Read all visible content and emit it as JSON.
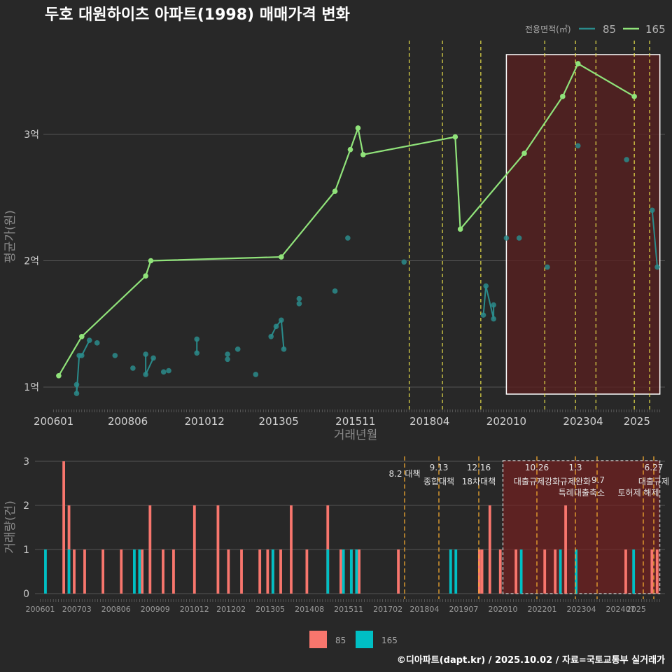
{
  "title": "두호 대원하이츠 아파트(1998) 매매가격 변화",
  "footer": "©디아파트(dapt.kr) / 2025.10.02 / 자료=국토교통부 실거래가",
  "colors": {
    "background": "#282828",
    "s85_price": "#2a8b8b",
    "s165_price": "#90e37a",
    "s85_bar": "#f8766d",
    "s165_bar": "#00bfc4",
    "policy_line_top": "#e8e04a",
    "policy_line_bottom": "#f0a830",
    "highlight": "#5a1f1f"
  },
  "chart_data": [
    {
      "type": "line",
      "title": "두호 대원하이츠 아파트(1998) 매매가격 변화",
      "xlabel": "거래년월",
      "ylabel": "평균가(원)",
      "x_ticks": [
        "200601",
        "200806",
        "201012",
        "201305",
        "201511",
        "201804",
        "202010",
        "202304",
        "2025"
      ],
      "y_ticks": [
        "1억",
        "2억",
        "3억"
      ],
      "ylim_eok": [
        0.92,
        3.65
      ],
      "legend": {
        "title": "전용면적(㎡)",
        "entries": [
          "85",
          "165"
        ],
        "position": "top-right"
      },
      "highlight_range": [
        "202010",
        "202510"
      ],
      "policy_dates": [
        "2017-08",
        "2018-09",
        "2019-12",
        "2022-01",
        "2023-01",
        "2023-09",
        "2024-12",
        "2025-06"
      ],
      "series": [
        {
          "name": "165",
          "points": [
            [
              "2006-03",
              1.09
            ],
            [
              "2006-12",
              1.4
            ],
            [
              "2009-01",
              1.88
            ],
            [
              "2009-03",
              2.0
            ],
            [
              "2013-06",
              2.03
            ],
            [
              "2015-03",
              2.55
            ],
            [
              "2015-09",
              2.88
            ],
            [
              "2015-12",
              3.05
            ],
            [
              "2016-02",
              2.84
            ],
            [
              "2019-02",
              2.98
            ],
            [
              "2019-04",
              2.25
            ],
            [
              "2021-05",
              2.85
            ],
            [
              "2022-08",
              3.3
            ],
            [
              "2023-02",
              3.56
            ],
            [
              "2024-12",
              3.3
            ]
          ]
        },
        {
          "name": "85",
          "points": [
            [
              "2006-10",
              1.02
            ],
            [
              "2006-10",
              0.95
            ],
            [
              "2006-11",
              1.25
            ],
            [
              "2006-12",
              1.25
            ],
            [
              "2007-03",
              1.37
            ],
            [
              "2007-06",
              1.35
            ],
            [
              "2008-01",
              1.25
            ],
            [
              "2008-08",
              1.15
            ],
            [
              "2009-01",
              1.26
            ],
            [
              "2009-01",
              1.1
            ],
            [
              "2009-04",
              1.23
            ],
            [
              "2009-08",
              1.12
            ],
            [
              "2009-10",
              1.13
            ],
            [
              "2010-09",
              1.27
            ],
            [
              "2010-09",
              1.38
            ],
            [
              "2011-09",
              1.26
            ],
            [
              "2011-09",
              1.22
            ],
            [
              "2012-01",
              1.3
            ],
            [
              "2012-08",
              1.1
            ],
            [
              "2013-02",
              1.4
            ],
            [
              "2013-04",
              1.48
            ],
            [
              "2013-06",
              1.53
            ],
            [
              "2013-07",
              1.3
            ],
            [
              "2014-01",
              1.66
            ],
            [
              "2014-01",
              1.7
            ],
            [
              "2015-03",
              1.76
            ],
            [
              "2015-08",
              2.18
            ],
            [
              "2017-06",
              1.99
            ],
            [
              "2020-01",
              1.57
            ],
            [
              "2020-02",
              1.8
            ],
            [
              "2020-05",
              1.54
            ],
            [
              "2020-05",
              1.65
            ],
            [
              "2020-10",
              2.18
            ],
            [
              "2021-03",
              2.18
            ],
            [
              "2022-02",
              1.95
            ],
            [
              "2023-02",
              2.91
            ],
            [
              "2024-09",
              2.8
            ],
            [
              "2025-07",
              2.4
            ],
            [
              "2025-09",
              1.95
            ]
          ]
        }
      ]
    },
    {
      "type": "bar",
      "ylabel": "거래량(건)",
      "x_ticks": [
        "200601",
        "200703",
        "200806",
        "200909",
        "201012",
        "201202",
        "201305",
        "201408",
        "201511",
        "201702",
        "201804",
        "201907",
        "202010",
        "202201",
        "202304",
        "202407",
        "2025"
      ],
      "y_ticks": [
        "0",
        "1",
        "2",
        "3"
      ],
      "ylim": [
        0,
        3
      ],
      "legend": {
        "entries": [
          "85",
          "165"
        ],
        "position": "bottom"
      },
      "highlight_range": [
        "202010",
        "202510"
      ],
      "policy_labels": [
        {
          "date": "2017-08",
          "lines": [
            "8.2 대책"
          ]
        },
        {
          "date": "2018-09",
          "lines": [
            "9.13",
            "종합대책"
          ]
        },
        {
          "date": "2019-12",
          "lines": [
            "12.16",
            "18차대책"
          ]
        },
        {
          "date": "2022-01",
          "lines": [
            "10.26",
            "대출규제강화"
          ]
        },
        {
          "date": "2023-01",
          "lines": [
            "1.3",
            "규제완화"
          ]
        },
        {
          "date": "2023-09",
          "lines": [
            "9.7",
            "특례대출축소"
          ]
        },
        {
          "date": "2024-12",
          "lines": [
            "토허제 해제"
          ]
        },
        {
          "date": "2025-06",
          "lines": [
            "6.27",
            "대출규제"
          ]
        }
      ],
      "series": [
        {
          "name": "85",
          "bars": [
            [
              "2006-10",
              3
            ],
            [
              "2006-12",
              2
            ],
            [
              "2007-02",
              1
            ],
            [
              "2007-06",
              1
            ],
            [
              "2008-01",
              1
            ],
            [
              "2008-08",
              1
            ],
            [
              "2009-04",
              1
            ],
            [
              "2009-07",
              2
            ],
            [
              "2009-12",
              1
            ],
            [
              "2010-04",
              1
            ],
            [
              "2010-12",
              2
            ],
            [
              "2011-09",
              2
            ],
            [
              "2012-01",
              1
            ],
            [
              "2012-06",
              1
            ],
            [
              "2013-01",
              1
            ],
            [
              "2013-04",
              1
            ],
            [
              "2013-06",
              1
            ],
            [
              "2013-09",
              1
            ],
            [
              "2014-01",
              2
            ],
            [
              "2014-07",
              1
            ],
            [
              "2015-03",
              2
            ],
            [
              "2015-08",
              1
            ],
            [
              "2015-12",
              1
            ],
            [
              "2016-03",
              1
            ],
            [
              "2017-06",
              1
            ],
            [
              "2020-01",
              1
            ],
            [
              "2020-02",
              1
            ],
            [
              "2020-05",
              2
            ],
            [
              "2020-09",
              1
            ],
            [
              "2021-03",
              1
            ],
            [
              "2022-02",
              1
            ],
            [
              "2022-06",
              1
            ],
            [
              "2022-10",
              2
            ],
            [
              "2024-09",
              1
            ],
            [
              "2025-07",
              1
            ],
            [
              "2025-09",
              1
            ]
          ]
        },
        {
          "name": "165",
          "bars": [
            [
              "2006-03",
              1
            ],
            [
              "2006-12",
              1
            ],
            [
              "2009-01",
              1
            ],
            [
              "2009-03",
              1
            ],
            [
              "2013-06",
              1
            ],
            [
              "2015-03",
              1
            ],
            [
              "2015-09",
              1
            ],
            [
              "2015-12",
              1
            ],
            [
              "2016-02",
              1
            ],
            [
              "2019-02",
              1
            ],
            [
              "2019-04",
              1
            ],
            [
              "2021-05",
              1
            ],
            [
              "2022-08",
              1
            ],
            [
              "2023-02",
              1
            ],
            [
              "2024-12",
              1
            ]
          ]
        }
      ]
    }
  ]
}
